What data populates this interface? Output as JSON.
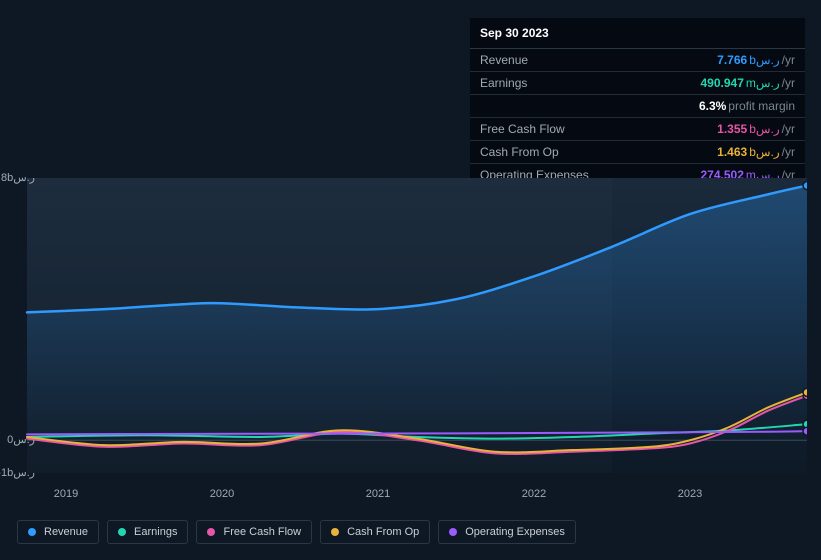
{
  "tooltip": {
    "date": "Sep 30 2023",
    "rows": [
      {
        "label": "Revenue",
        "value": "7.766",
        "unit": "bر.س",
        "suffix": "/yr",
        "color": "#2f9bff"
      },
      {
        "label": "Earnings",
        "value": "490.947",
        "unit": "mر.س",
        "suffix": "/yr",
        "color": "#24d6b0",
        "note_value": "6.3%",
        "note_text": "profit margin"
      },
      {
        "label": "Free Cash Flow",
        "value": "1.355",
        "unit": "bر.س",
        "suffix": "/yr",
        "color": "#e755a8"
      },
      {
        "label": "Cash From Op",
        "value": "1.463",
        "unit": "bر.س",
        "suffix": "/yr",
        "color": "#e8b339"
      },
      {
        "label": "Operating Expenses",
        "value": "274.502",
        "unit": "mر.س",
        "suffix": "/yr",
        "color": "#9a5cff"
      }
    ]
  },
  "chart": {
    "background": "#0d1824",
    "plot_bg_top": "#1a2a3b",
    "plot_bg_bottom": "#0e1a27",
    "y_axis": {
      "ticks": [
        {
          "label": "8bر.س",
          "value": 8
        },
        {
          "label": "0ر.س",
          "value": 0
        },
        {
          "label": "-1bر.س",
          "value": -1
        }
      ],
      "min": -1,
      "max": 8
    },
    "x_axis": {
      "ticks": [
        {
          "label": "2019",
          "value": 2019
        },
        {
          "label": "2020",
          "value": 2020
        },
        {
          "label": "2021",
          "value": 2021
        },
        {
          "label": "2022",
          "value": 2022
        },
        {
          "label": "2023",
          "value": 2023
        }
      ],
      "min": 2018.75,
      "max": 2023.75
    },
    "series": [
      {
        "name": "Revenue",
        "color": "#2f9bff",
        "width": 2.5,
        "fill": true,
        "points": [
          [
            2018.75,
            3.9
          ],
          [
            2019.25,
            4.0
          ],
          [
            2019.75,
            4.15
          ],
          [
            2020.0,
            4.18
          ],
          [
            2020.5,
            4.05
          ],
          [
            2021.0,
            4.0
          ],
          [
            2021.5,
            4.3
          ],
          [
            2022.0,
            5.0
          ],
          [
            2022.5,
            5.9
          ],
          [
            2023.0,
            6.9
          ],
          [
            2023.5,
            7.5
          ],
          [
            2023.75,
            7.77
          ]
        ]
      },
      {
        "name": "Earnings",
        "color": "#24d6b0",
        "width": 2,
        "fill": false,
        "points": [
          [
            2018.75,
            0.1
          ],
          [
            2019.5,
            0.15
          ],
          [
            2020.25,
            0.1
          ],
          [
            2020.75,
            0.2
          ],
          [
            2021.25,
            0.1
          ],
          [
            2021.75,
            0.05
          ],
          [
            2022.25,
            0.1
          ],
          [
            2022.75,
            0.2
          ],
          [
            2023.25,
            0.3
          ],
          [
            2023.75,
            0.49
          ]
        ]
      },
      {
        "name": "Free Cash Flow",
        "color": "#e755a8",
        "width": 2,
        "fill": false,
        "points": [
          [
            2018.75,
            0.05
          ],
          [
            2019.25,
            -0.2
          ],
          [
            2019.75,
            -0.1
          ],
          [
            2020.25,
            -0.15
          ],
          [
            2020.75,
            0.25
          ],
          [
            2021.25,
            0.0
          ],
          [
            2021.75,
            -0.4
          ],
          [
            2022.25,
            -0.35
          ],
          [
            2022.75,
            -0.25
          ],
          [
            2023.0,
            -0.1
          ],
          [
            2023.25,
            0.3
          ],
          [
            2023.5,
            0.9
          ],
          [
            2023.75,
            1.36
          ]
        ]
      },
      {
        "name": "Cash From Op",
        "color": "#e8b339",
        "width": 2,
        "fill": false,
        "points": [
          [
            2018.75,
            0.1
          ],
          [
            2019.25,
            -0.15
          ],
          [
            2019.75,
            -0.05
          ],
          [
            2020.25,
            -0.1
          ],
          [
            2020.75,
            0.3
          ],
          [
            2021.25,
            0.05
          ],
          [
            2021.75,
            -0.35
          ],
          [
            2022.25,
            -0.3
          ],
          [
            2022.75,
            -0.2
          ],
          [
            2023.0,
            0.0
          ],
          [
            2023.25,
            0.4
          ],
          [
            2023.5,
            1.0
          ],
          [
            2023.75,
            1.46
          ]
        ]
      },
      {
        "name": "Operating Expenses",
        "color": "#9a5cff",
        "width": 2,
        "fill": false,
        "points": [
          [
            2018.75,
            0.18
          ],
          [
            2019.5,
            0.19
          ],
          [
            2020.5,
            0.2
          ],
          [
            2021.5,
            0.21
          ],
          [
            2022.5,
            0.23
          ],
          [
            2023.5,
            0.26
          ],
          [
            2023.75,
            0.275
          ]
        ]
      }
    ],
    "highlight_x": 2022.5,
    "end_marker_x": 2023.75
  },
  "legend": [
    {
      "label": "Revenue",
      "color": "#2f9bff"
    },
    {
      "label": "Earnings",
      "color": "#24d6b0"
    },
    {
      "label": "Free Cash Flow",
      "color": "#e755a8"
    },
    {
      "label": "Cash From Op",
      "color": "#e8b339"
    },
    {
      "label": "Operating Expenses",
      "color": "#9a5cff"
    }
  ]
}
